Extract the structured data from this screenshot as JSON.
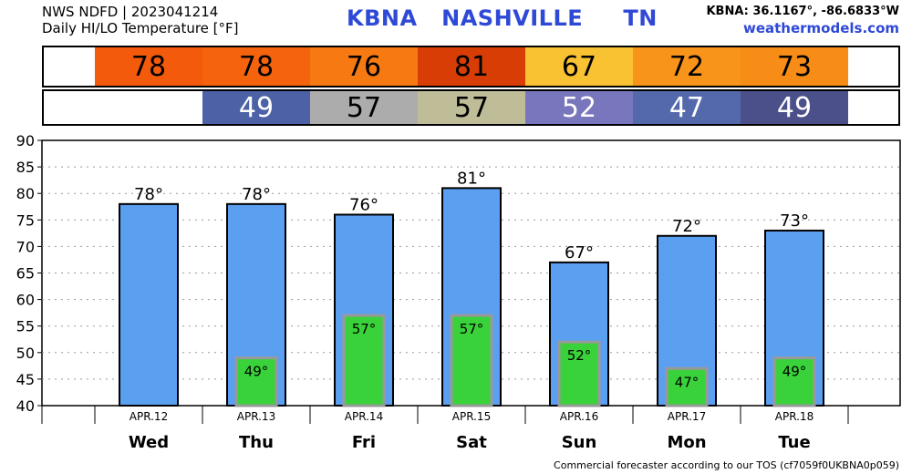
{
  "header": {
    "line1": "NWS NDFD | 2023041214",
    "line2": "Daily HI/LO Temperature [°F]",
    "station": "KBNA   NASHVILLE     TN",
    "coords": "KBNA: 36.1167°, -86.6833°W",
    "site": "weathermodels.com"
  },
  "hi_row": [
    {
      "value": "78",
      "color": "#f45a0c"
    },
    {
      "value": "78",
      "color": "#f6630d"
    },
    {
      "value": "76",
      "color": "#f77911"
    },
    {
      "value": "81",
      "color": "#d93d06"
    },
    {
      "value": "67",
      "color": "#f9c233"
    },
    {
      "value": "72",
      "color": "#f8941a"
    },
    {
      "value": "73",
      "color": "#f78c16"
    }
  ],
  "lo_row": [
    {
      "value": "49",
      "color": "#4d62a6",
      "text": "#ffffff"
    },
    {
      "value": "57",
      "color": "#acacac",
      "text": "#000000"
    },
    {
      "value": "57",
      "color": "#bfbd98",
      "text": "#000000"
    },
    {
      "value": "52",
      "color": "#7876bc",
      "text": "#ffffff"
    },
    {
      "value": "47",
      "color": "#5469ab",
      "text": "#ffffff"
    },
    {
      "value": "49",
      "color": "#4b4f8a",
      "text": "#ffffff"
    }
  ],
  "chart_data": {
    "type": "bar",
    "categories": [
      "Wed",
      "Thu",
      "Fri",
      "Sat",
      "Sun",
      "Mon",
      "Tue"
    ],
    "dates": [
      "APR.12",
      "APR.13",
      "APR.14",
      "APR.15",
      "APR.16",
      "APR.17",
      "APR.18"
    ],
    "series": [
      {
        "values": [
          78,
          78,
          76,
          81,
          67,
          72,
          73
        ],
        "color": "#5b9ff0"
      },
      {
        "values": [
          null,
          49,
          57,
          57,
          52,
          47,
          49
        ],
        "color": "#3ad23a"
      }
    ],
    "hi_labels": [
      "78°",
      "78°",
      "76°",
      "81°",
      "67°",
      "72°",
      "73°"
    ],
    "lo_labels": [
      "",
      "49°",
      "57°",
      "57°",
      "52°",
      "47°",
      "49°"
    ],
    "ylim": [
      40,
      90
    ],
    "yticks": [
      "40",
      "45",
      "50",
      "55",
      "60",
      "65",
      "70",
      "75",
      "80",
      "85",
      "90"
    ],
    "grid": true
  },
  "footer": "Commercial forecaster according to our TOS (cf7059f0UKBNA0p059)"
}
